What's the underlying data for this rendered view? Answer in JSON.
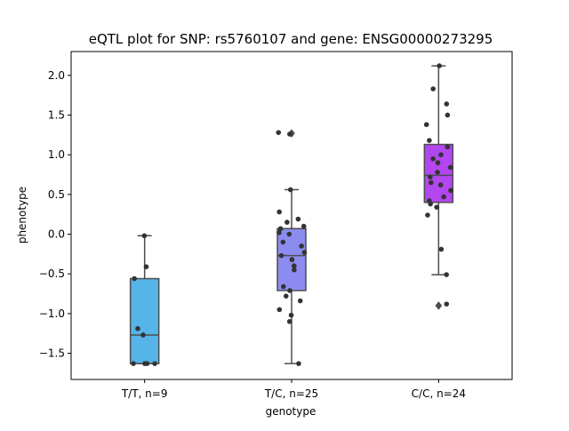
{
  "chart_data": {
    "type": "box",
    "title": "eQTL plot for SNP: rs5760107 and gene: ENSG00000273295",
    "xlabel": "genotype",
    "ylabel": "phenotype",
    "categories": [
      "T/T, n=9",
      "T/C, n=25",
      "C/C, n=24"
    ],
    "ylim": [
      -1.83,
      2.3
    ],
    "yticks": [
      -1.5,
      -1.0,
      -0.5,
      0.0,
      0.5,
      1.0,
      1.5,
      2.0
    ],
    "ytick_labels": [
      "−1.5",
      "−1.0",
      "−0.5",
      "0.0",
      "0.5",
      "1.0",
      "1.5",
      "2.0"
    ],
    "grid": false,
    "boxes": [
      {
        "category": "T/T, n=9",
        "color": "#56b4e9",
        "q1": -1.63,
        "median": -1.27,
        "q3": -0.56,
        "whisker_low": -1.63,
        "whisker_high": -0.02,
        "outliers": [],
        "points": [
          -0.02,
          -0.41,
          -0.56,
          -1.19,
          -1.27,
          -1.63,
          -1.63,
          -1.63,
          -1.63
        ]
      },
      {
        "category": "T/C, n=25",
        "color": "#8c8cf0",
        "q1": -0.71,
        "median": -0.27,
        "q3": 0.07,
        "whisker_low": -1.63,
        "whisker_high": 0.56,
        "outliers": [
          1.27
        ],
        "points": [
          1.28,
          1.26,
          0.56,
          0.28,
          0.19,
          0.15,
          0.1,
          0.07,
          0.02,
          -0.1,
          -0.15,
          -0.23,
          -0.27,
          -0.32,
          -0.45,
          -0.66,
          -0.71,
          -0.78,
          -0.84,
          -0.95,
          -1.02,
          -1.1,
          -1.63,
          -0.4,
          0.0
        ]
      },
      {
        "category": "C/C, n=24",
        "color": "#b346f0",
        "q1": 0.4,
        "median": 0.74,
        "q3": 1.13,
        "whisker_low": -0.51,
        "whisker_high": 2.12,
        "outliers": [
          -0.9
        ],
        "points": [
          2.12,
          1.83,
          1.64,
          1.5,
          1.38,
          1.18,
          1.1,
          0.95,
          0.9,
          0.84,
          0.78,
          0.72,
          0.62,
          0.55,
          0.47,
          0.42,
          0.38,
          0.34,
          0.24,
          -0.19,
          -0.51,
          -0.88,
          1.0,
          0.65
        ]
      }
    ]
  }
}
